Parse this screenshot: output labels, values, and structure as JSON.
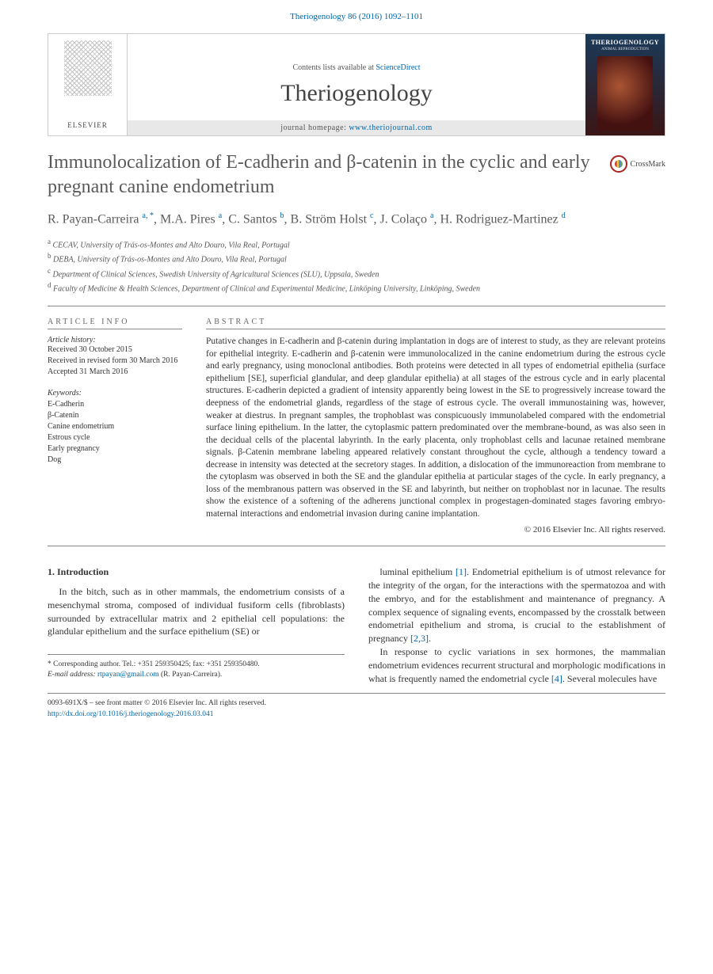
{
  "header": {
    "citation": "Theriogenology 86 (2016) 1092–1101",
    "contents_prefix": "Contents lists available at ",
    "contents_link": "ScienceDirect",
    "journal_name": "Theriogenology",
    "homepage_prefix": "journal homepage: ",
    "homepage_link": "www.theriojournal.com",
    "publisher": "ELSEVIER",
    "cover_title": "THERIOGENOLOGY",
    "cover_subtitle": "ANIMAL REPRODUCTION"
  },
  "article": {
    "title": "Immunolocalization of E-cadherin and β-catenin in the cyclic and early pregnant canine endometrium",
    "crossmark": "CrossMark",
    "authors_html": "R. Payan-Carreira <sup>a, *</sup>, M.A. Pires <sup>a</sup>, C. Santos <sup>b</sup>, B. Ström Holst <sup>c</sup>, J. Colaço <sup>a</sup>, H. Rodriguez-Martinez <sup>d</sup>",
    "affiliations": [
      "a CECAV, University of Trás-os-Montes and Alto Douro, Vila Real, Portugal",
      "b DEBA, University of Trás-os-Montes and Alto Douro, Vila Real, Portugal",
      "c Department of Clinical Sciences, Swedish University of Agricultural Sciences (SLU), Uppsala, Sweden",
      "d Faculty of Medicine & Health Sciences, Department of Clinical and Experimental Medicine, Linköping University, Linköping, Sweden"
    ]
  },
  "info": {
    "heading": "ARTICLE INFO",
    "history_label": "Article history:",
    "history": [
      "Received 30 October 2015",
      "Received in revised form 30 March 2016",
      "Accepted 31 March 2016"
    ],
    "keywords_label": "Keywords:",
    "keywords": [
      "E-Cadherin",
      "β-Catenin",
      "Canine endometrium",
      "Estrous cycle",
      "Early pregnancy",
      "Dog"
    ]
  },
  "abstract": {
    "heading": "ABSTRACT",
    "text": "Putative changes in E-cadherin and β-catenin during implantation in dogs are of interest to study, as they are relevant proteins for epithelial integrity. E-cadherin and β-catenin were immunolocalized in the canine endometrium during the estrous cycle and early pregnancy, using monoclonal antibodies. Both proteins were detected in all types of endometrial epithelia (surface epithelium [SE], superficial glandular, and deep glandular epithelia) at all stages of the estrous cycle and in early placental structures. E-cadherin depicted a gradient of intensity apparently being lowest in the SE to progressively increase toward the deepness of the endometrial glands, regardless of the stage of estrous cycle. The overall immunostaining was, however, weaker at diestrus. In pregnant samples, the trophoblast was conspicuously immunolabeled compared with the endometrial surface lining epithelium. In the latter, the cytoplasmic pattern predominated over the membrane-bound, as was also seen in the decidual cells of the placental labyrinth. In the early placenta, only trophoblast cells and lacunae retained membrane signals. β-Catenin membrane labeling appeared relatively constant throughout the cycle, although a tendency toward a decrease in intensity was detected at the secretory stages. In addition, a dislocation of the immunoreaction from membrane to the cytoplasm was observed in both the SE and the glandular epithelia at particular stages of the cycle. In early pregnancy, a loss of the membranous pattern was observed in the SE and labyrinth, but neither on trophoblast nor in lacunae. The results show the existence of a softening of the adherens junctional complex in progestagen-dominated stages favoring embryo-maternal interactions and endometrial invasion during canine implantation.",
    "copyright": "© 2016 Elsevier Inc. All rights reserved."
  },
  "body": {
    "section_heading": "1. Introduction",
    "col1_p1": "In the bitch, such as in other mammals, the endometrium consists of a mesenchymal stroma, composed of individual fusiform cells (fibroblasts) surrounded by extracellular matrix and 2 epithelial cell populations: the glandular epithelium and the surface epithelium (SE) or",
    "col2_p1_a": "luminal epithelium ",
    "ref1": "[1]",
    "col2_p1_b": ". Endometrial epithelium is of utmost relevance for the integrity of the organ, for the interactions with the spermatozoa and with the embryo, and for the establishment and maintenance of pregnancy. A complex sequence of signaling events, encompassed by the crosstalk between endometrial epithelium and stroma, is crucial to the establishment of pregnancy ",
    "ref23": "[2,3]",
    "col2_p1_c": ".",
    "col2_p2_a": "In response to cyclic variations in sex hormones, the mammalian endometrium evidences recurrent structural and morphologic modifications in what is frequently named the endometrial cycle ",
    "ref4": "[4]",
    "col2_p2_b": ". Several molecules have"
  },
  "corresponding": {
    "label": "* Corresponding author. Tel.: +351 259350425; fax: +351 259350480.",
    "email_label": "E-mail address:",
    "email": "rtpayan@gmail.com",
    "email_suffix": " (R. Payan-Carreira)."
  },
  "footer": {
    "line1": "0093-691X/$ – see front matter © 2016 Elsevier Inc. All rights reserved.",
    "doi": "http://dx.doi.org/10.1016/j.theriogenology.2016.03.041"
  },
  "colors": {
    "link": "#0066aa",
    "heading_gray": "#5a5a5a",
    "rule": "#888888"
  }
}
